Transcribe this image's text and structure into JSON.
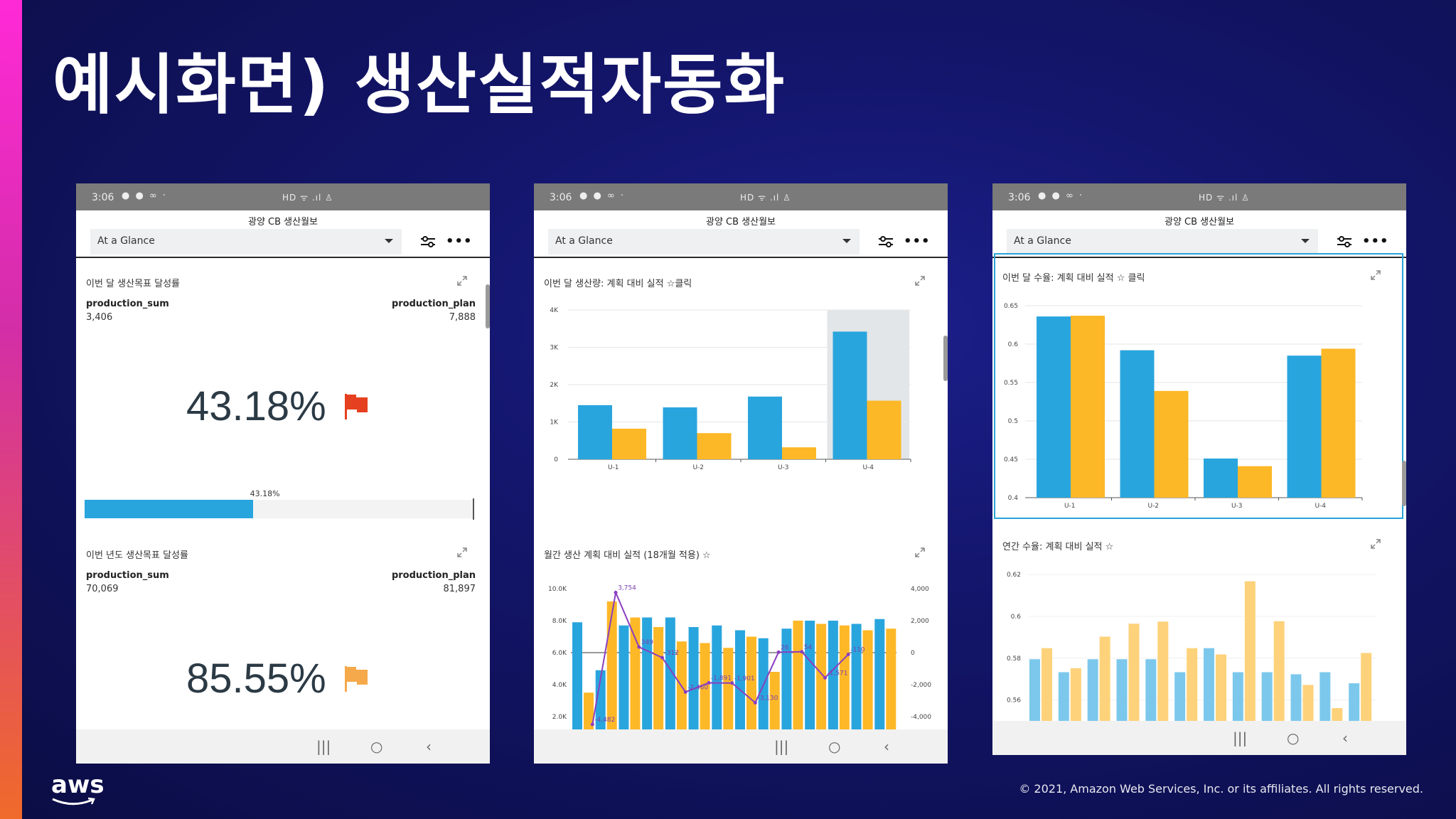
{
  "slide": {
    "title": "예시화면) 생산실적자동화",
    "copyright": "© 2021, Amazon Web Services, Inc. or its affiliates. All rights reserved.",
    "logo_text": "aws"
  },
  "phone_common": {
    "time": "3:06",
    "app_title": "광양 CB 생산월보",
    "sheet_select": "At a Glance",
    "status_dots": "● ● ∞ ·",
    "status_right": "HD ᯤ .ıl ♙",
    "nav_recent": "|||",
    "nav_home": "○",
    "nav_back": "‹",
    "more": "•••"
  },
  "phone1": {
    "kpi1": {
      "title": "이번 달 생산목표 달성률",
      "left_label": "production_sum",
      "left_value": "3,406",
      "right_label": "production_plan",
      "right_value": "7,888",
      "percent": "43.18%",
      "progress_label": "43.18%",
      "progress_fraction": 0.4318
    },
    "kpi2": {
      "title": "이번 년도 생산목표 달성률",
      "left_label": "production_sum",
      "left_value": "70,069",
      "right_label": "production_plan",
      "right_value": "81,897",
      "percent": "85.55%"
    },
    "colors": {
      "flag_red": "#e5401f",
      "flag_orange": "#f5a94a",
      "progress": "#29a5de"
    }
  },
  "phone2": {
    "chart1_title": "이번 달 생산량: 계획 대비 실적 ☆클릭",
    "chart2_title": "월간 생산 계획 대비 실적 (18개월 적용) ☆"
  },
  "phone3": {
    "chart1_title": "이번 달 수율: 계획 대비 실적 ☆ 클릭",
    "chart2_title": "연간 수율: 계획 대비 실적 ☆"
  },
  "chart_data": [
    {
      "id": "monthly-production",
      "type": "bar",
      "title": "이번 달 생산량: 계획 대비 실적 ☆클릭",
      "categories": [
        "U-1",
        "U-2",
        "U-3",
        "U-4"
      ],
      "series": [
        {
          "name": "blue",
          "color": "#29a5de",
          "values": [
            1450,
            1390,
            1680,
            3420
          ]
        },
        {
          "name": "orange",
          "color": "#fdb827",
          "values": [
            820,
            700,
            320,
            1570
          ]
        }
      ],
      "ylim": [
        0,
        4000
      ],
      "yticks": [
        "0",
        "1K",
        "2K",
        "3K",
        "4K"
      ],
      "highlighted_category": "U-4"
    },
    {
      "id": "monthly-18",
      "type": "bar+line",
      "title": "월간 생산 계획 대비 실적 (18개월 적용) ☆",
      "ylim_left": [
        2000,
        10000
      ],
      "yticks_left": [
        "2.0K",
        "4.0K",
        "6.0K",
        "8.0K",
        "10.0K"
      ],
      "ylim_right": [
        -4000,
        4000
      ],
      "yticks_right": [
        "-4,000",
        "-2,000",
        "0",
        "2,000",
        "4,000"
      ],
      "blue_values": [
        7900,
        4900,
        7700,
        8200,
        8200,
        7600,
        7700,
        7400,
        6900,
        7500,
        8000,
        8000,
        7800,
        8100
      ],
      "orange_values": [
        3500,
        9200,
        8200,
        7600,
        6700,
        6600,
        6300,
        7000,
        4800,
        8000,
        7800,
        7700,
        7400,
        7500
      ],
      "line_values": [
        -4482,
        3754,
        349,
        -312,
        -2460,
        -1891,
        -1901,
        -3130,
        26,
        54,
        -1571,
        -110
      ],
      "line_labels": [
        "-4,482",
        "3,754",
        "349",
        "-312",
        "-2,460",
        "-1,891",
        "-1,901",
        "-3,130",
        "26",
        "54",
        "-1,571",
        "-110"
      ]
    },
    {
      "id": "monthly-yield",
      "type": "bar",
      "title": "이번 달 수율: 계획 대비 실적 ☆ 클릭",
      "categories": [
        "U-1",
        "U-2",
        "U-3",
        "U-4"
      ],
      "series": [
        {
          "name": "blue",
          "color": "#29a5de",
          "values": [
            0.636,
            0.592,
            0.451,
            0.585
          ]
        },
        {
          "name": "orange",
          "color": "#fdb827",
          "values": [
            0.637,
            0.539,
            0.441,
            0.594
          ]
        }
      ],
      "ylim": [
        0.4,
        0.65
      ],
      "yticks": [
        "0.4",
        "0.45",
        "0.5",
        "0.55",
        "0.6",
        "0.65"
      ]
    },
    {
      "id": "annual-yield",
      "type": "bar",
      "title": "연간 수율: 계획 대비 실적 ☆",
      "ylim": [
        0.55,
        0.62
      ],
      "yticks": [
        "0.56",
        "0.58",
        "0.6",
        "0.62"
      ],
      "blue_values": [
        0.5795,
        0.5733,
        0.5795,
        0.5795,
        0.5795,
        0.5733,
        0.5848,
        0.5733,
        0.5733,
        0.5723,
        0.5733,
        0.568
      ],
      "orange_values": [
        0.5848,
        0.5752,
        0.5903,
        0.5965,
        0.5975,
        0.5848,
        0.5818,
        0.6168,
        0.5977,
        0.5672,
        0.5561,
        0.5825
      ]
    }
  ]
}
